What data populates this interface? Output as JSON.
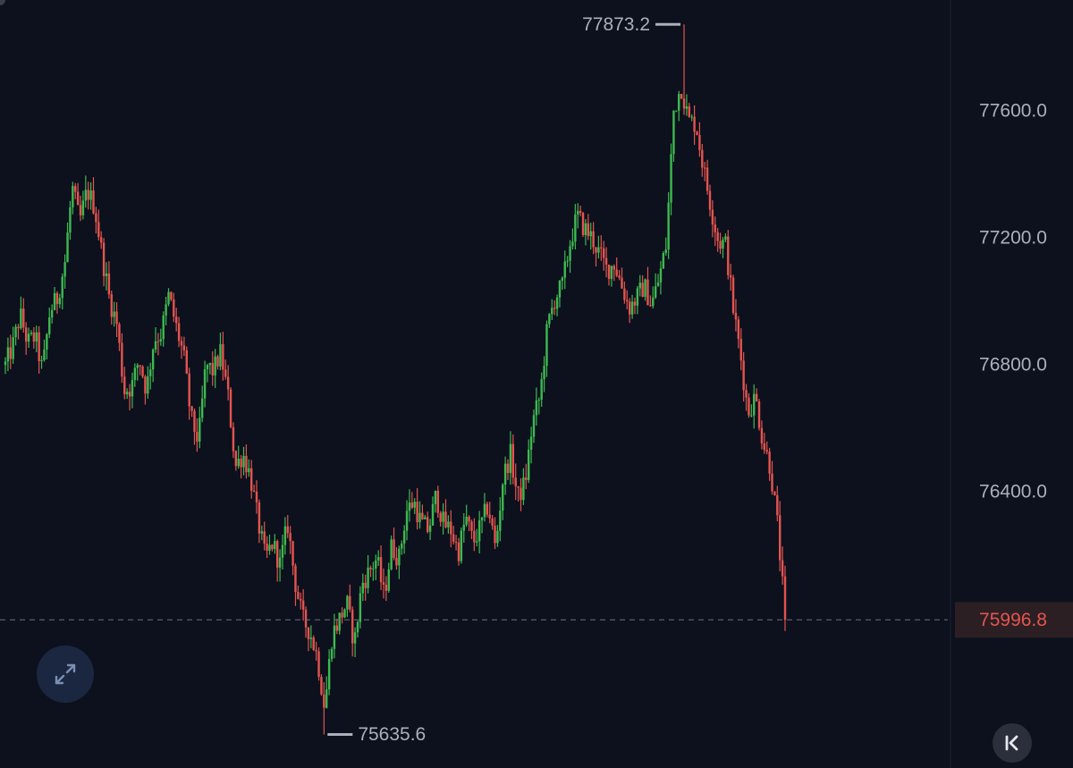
{
  "chart_data": {
    "type": "candlestick",
    "y_ticks": [
      "77600.0",
      "77200.0",
      "76800.0",
      "76400.0"
    ],
    "y_tick_values": [
      77600,
      77200,
      76800,
      76400
    ],
    "ylim": [
      75530,
      77950
    ],
    "high_marker": {
      "value": 77873.2,
      "label": "77873.2"
    },
    "low_marker": {
      "value": 75635.6,
      "label": "75635.6"
    },
    "last_price": {
      "value": 75996.8,
      "label": "75996.8"
    },
    "up_color": "#3fb950",
    "down_color": "#e5544f",
    "axis_label_color": "#aab0bc",
    "grid": false,
    "path": [
      76800,
      76860,
      76960,
      76870,
      76890,
      76780,
      76970,
      77010,
      77120,
      77360,
      77250,
      77350,
      77300,
      77150,
      77010,
      76930,
      76720,
      76730,
      76820,
      76720,
      76880,
      76900,
      77020,
      76920,
      76830,
      76630,
      76560,
      76800,
      76780,
      76840,
      76700,
      76480,
      76520,
      76450,
      76310,
      76190,
      76240,
      76170,
      76300,
      76120,
      76000,
      75960,
      75880,
      75720,
      75950,
      76000,
      76050,
      75920,
      76110,
      76150,
      76190,
      76070,
      76230,
      76190,
      76340,
      76370,
      76300,
      76280,
      76390,
      76300,
      76280,
      76210,
      76320,
      76240,
      76290,
      76360,
      76220,
      76440,
      76520,
      76380,
      76430,
      76620,
      76700,
      76920,
      77010,
      77050,
      77180,
      77270,
      77230,
      77200,
      77150,
      77100,
      77120,
      77050,
      76980,
      77010,
      77050,
      76990,
      77070,
      77180,
      77600,
      77680,
      77570,
      77560,
      77420,
      77300,
      77190,
      77180,
      76980,
      76830,
      76650,
      76700,
      76560,
      76480,
      76290,
      76000
    ]
  }
}
